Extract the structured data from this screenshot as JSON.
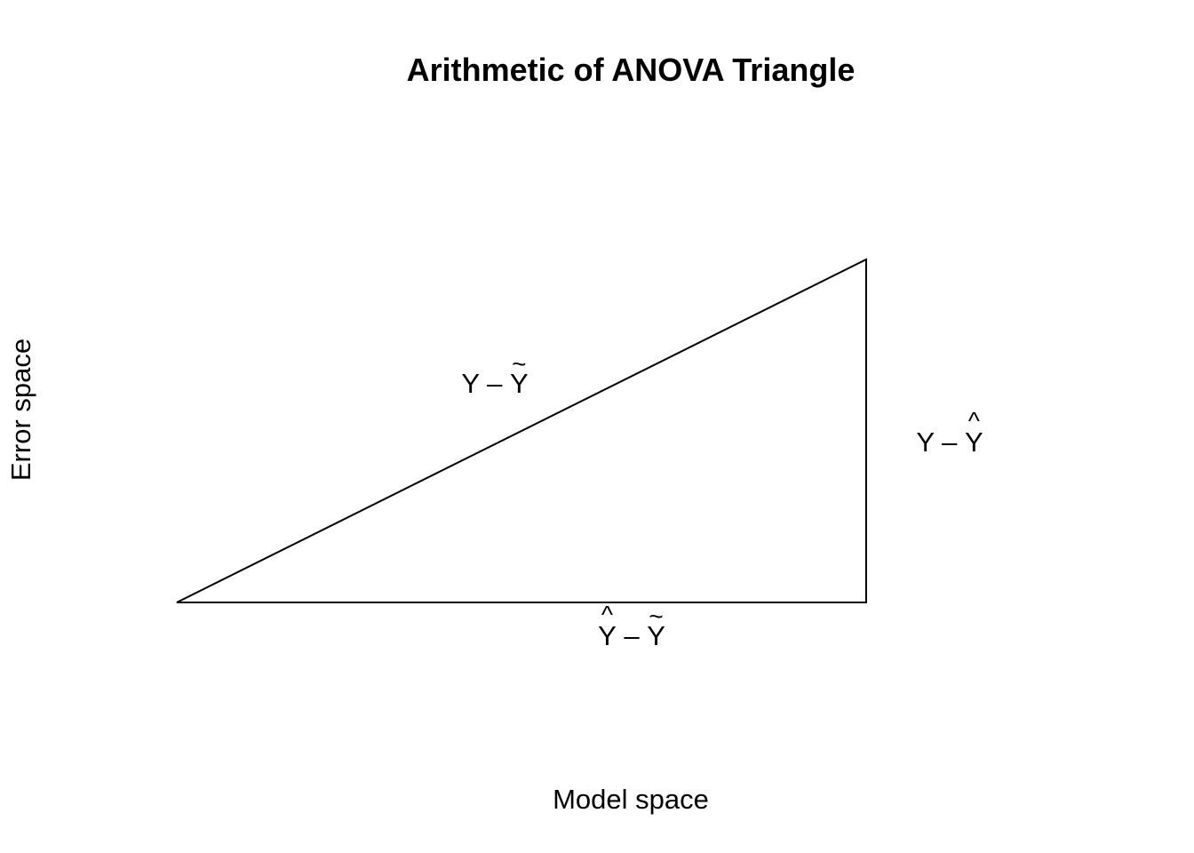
{
  "title": "Arithmetic of ANOVA Triangle",
  "xlabel": "Model space",
  "ylabel": "Error space",
  "edges": {
    "hypotenuse": {
      "y": "Y",
      "op": "–",
      "base": "Y",
      "accent": "tilde"
    },
    "vertical": {
      "y": "Y",
      "op": "–",
      "base": "Y",
      "accent": "hat"
    },
    "horizontal": {
      "y": "Y",
      "y_accent": "hat",
      "op": "–",
      "base": "Y",
      "accent": "tilde"
    }
  },
  "colors": {
    "line": "#000000",
    "background": "#ffffff"
  }
}
